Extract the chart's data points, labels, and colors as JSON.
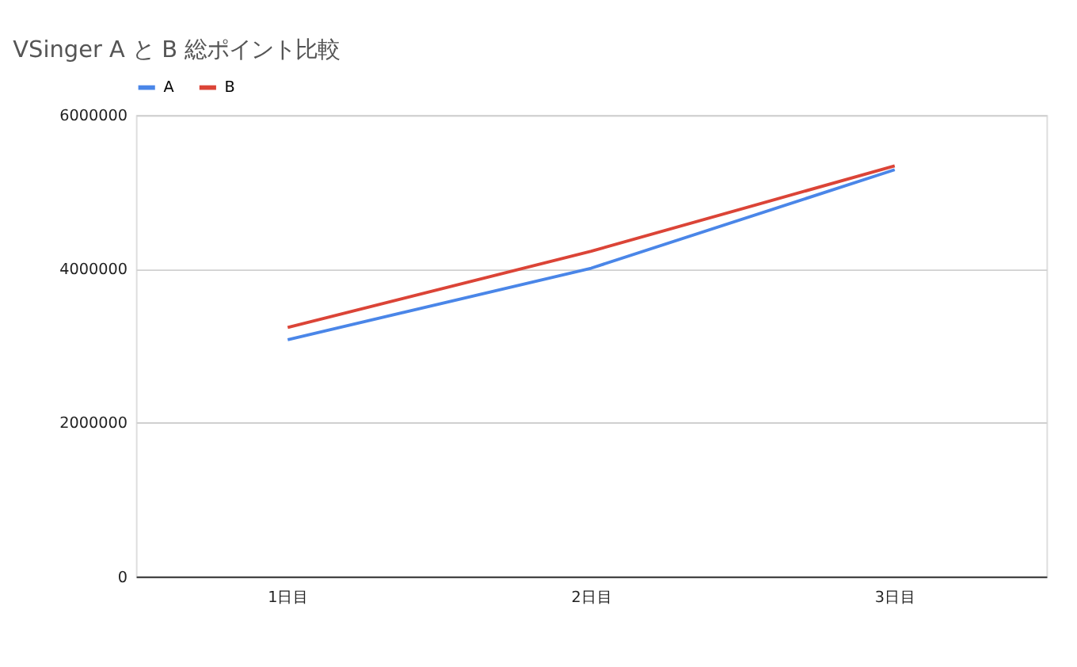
{
  "chart_data": {
    "type": "line",
    "title": "VSinger A と B 総ポイント比較",
    "categories": [
      "1日目",
      "2日目",
      "3日目"
    ],
    "series": [
      {
        "name": "A",
        "color": "#4a86e8",
        "values": [
          3080000,
          4010000,
          5290000
        ]
      },
      {
        "name": "B",
        "color": "#db4437",
        "values": [
          3240000,
          4230000,
          5340000
        ]
      }
    ],
    "ylim": [
      0,
      6000000
    ],
    "yticks": [
      0,
      2000000,
      4000000,
      6000000
    ],
    "grid": "y",
    "legend": "top",
    "marker": "none",
    "line_style": "solid"
  }
}
